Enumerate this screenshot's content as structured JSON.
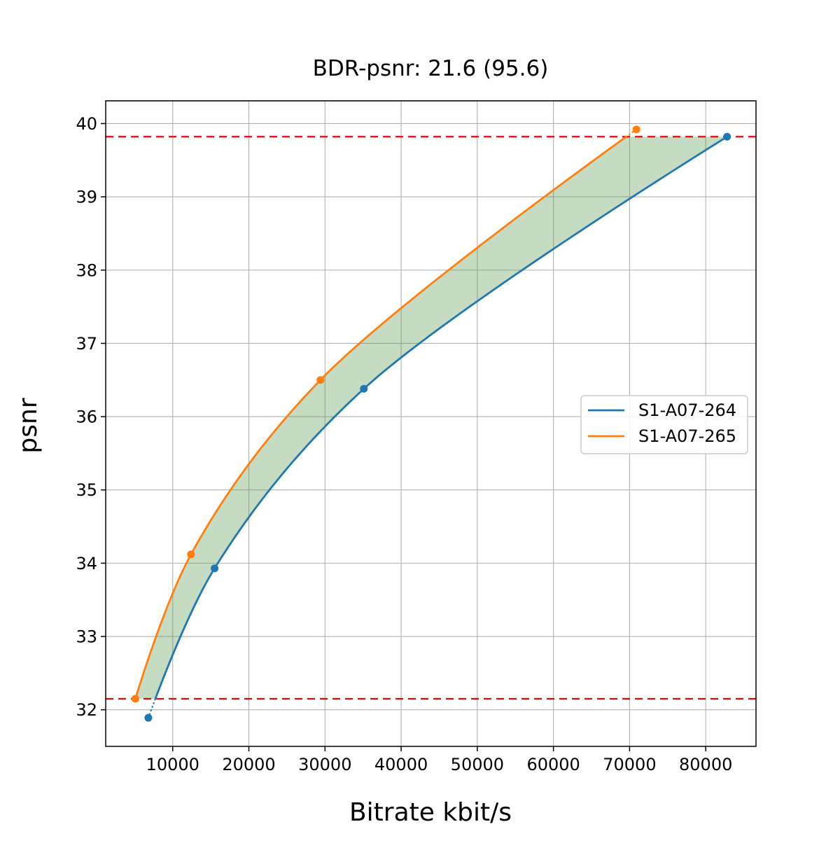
{
  "figure": {
    "background": "#ffffff"
  },
  "chart_data": {
    "type": "line",
    "title": "BDR-psnr: 21.6 (95.6)",
    "xlabel": "Bitrate kbit/s",
    "ylabel": "psnr",
    "xlim": [
      1200,
      86600
    ],
    "ylim": [
      31.5,
      40.31
    ],
    "xticks": [
      10000,
      20000,
      30000,
      40000,
      50000,
      60000,
      70000,
      80000
    ],
    "yticks": [
      32,
      33,
      34,
      35,
      36,
      37,
      38,
      39,
      40
    ],
    "grid": true,
    "grid_color": "#b0b0b0",
    "band_fill_color": "rgba(88,155,82,0.35)",
    "series": [
      {
        "name": "S1-A07-264",
        "color": "#1f77b4",
        "points": [
          [
            6800,
            31.89
          ],
          [
            15500,
            33.93
          ],
          [
            35100,
            36.38
          ],
          [
            82800,
            39.82
          ]
        ]
      },
      {
        "name": "S1-A07-265",
        "color": "#ff7f0e",
        "points": [
          [
            5100,
            32.15
          ],
          [
            12400,
            34.12
          ],
          [
            29400,
            36.5
          ],
          [
            70900,
            39.92
          ]
        ]
      }
    ],
    "reference_lines": [
      {
        "y": 32.15,
        "color": "#ff0000",
        "style": "dashed"
      },
      {
        "y": 39.82,
        "color": "#ff0000",
        "style": "dashed"
      }
    ],
    "integration_bounds": {
      "psnr_low": 32.15,
      "psnr_high": 39.82
    },
    "legend": {
      "position": "center-right",
      "border_color": "#cccccc"
    }
  }
}
